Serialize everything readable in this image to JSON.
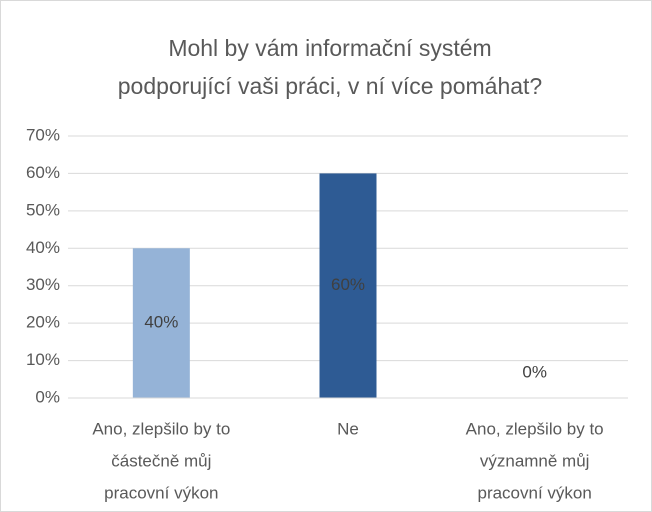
{
  "chart_data": {
    "type": "bar",
    "title": [
      "Mohl by vám informační systém",
      "podporující vaši práci, v ní více pomáhat?"
    ],
    "categories": [
      [
        "Ano, zlepšilo by to",
        "částečně můj",
        "pracovní výkon"
      ],
      [
        "Ne"
      ],
      [
        "Ano, zlepšilo by to",
        "významně můj",
        "pracovní výkon"
      ]
    ],
    "values": [
      40,
      60,
      0
    ],
    "value_labels": [
      "40%",
      "60%",
      "0%"
    ],
    "colors": [
      "#95b3d7",
      "#2e5b94",
      "#2e5b94"
    ],
    "ylim": [
      0,
      70
    ],
    "yticks": [
      {
        "value": 0,
        "label": "0%"
      },
      {
        "value": 10,
        "label": "10%"
      },
      {
        "value": 20,
        "label": "20%"
      },
      {
        "value": 30,
        "label": "30%"
      },
      {
        "value": 40,
        "label": "40%"
      },
      {
        "value": 50,
        "label": "50%"
      },
      {
        "value": 60,
        "label": "60%"
      },
      {
        "value": 70,
        "label": "70%"
      }
    ],
    "grid": true
  }
}
